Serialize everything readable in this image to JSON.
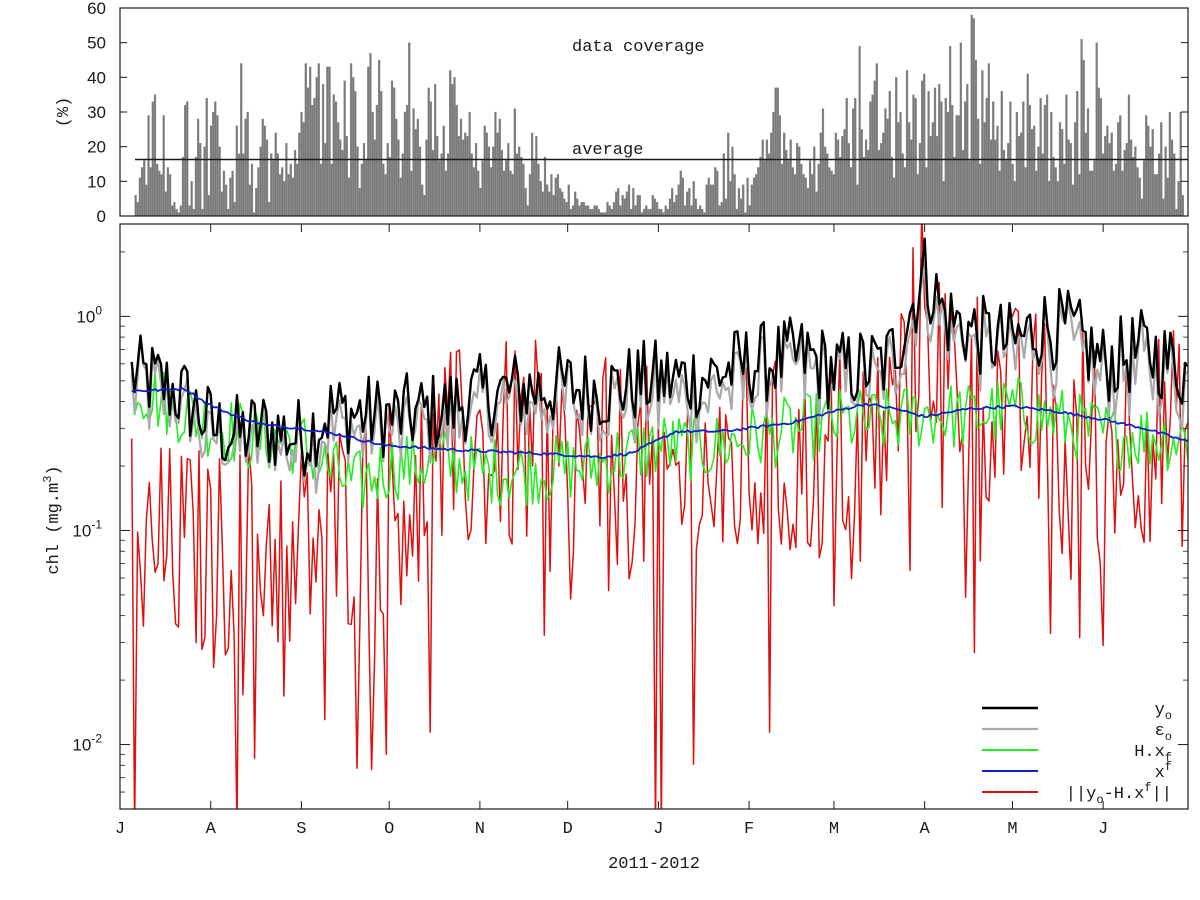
{
  "chart_data": [
    {
      "type": "bar",
      "ylabel": "(%)",
      "ylim": [
        0,
        60
      ],
      "yticks": [
        "0",
        "10",
        "20",
        "30",
        "40",
        "50",
        "60"
      ],
      "annotation": "data coverage",
      "average_label": "average",
      "average_value": 16.3,
      "grid": false,
      "day_step": 1,
      "values": [
        6,
        4,
        11,
        14,
        16,
        9,
        29,
        14,
        33,
        35,
        15,
        13,
        12,
        29,
        7,
        14,
        12,
        3,
        4,
        2,
        1,
        3,
        17,
        32,
        33,
        3,
        10,
        2,
        17,
        28,
        21,
        2,
        20,
        34,
        6,
        26,
        30,
        33,
        29,
        20,
        7,
        13,
        9,
        2,
        11,
        13,
        4,
        26,
        18,
        44,
        18,
        28,
        30,
        9,
        15,
        1,
        8,
        14,
        20,
        28,
        26,
        22,
        4,
        18,
        16,
        24,
        18,
        12,
        14,
        10,
        21,
        12,
        15,
        11,
        19,
        15,
        24,
        30,
        27,
        44,
        37,
        43,
        32,
        34,
        40,
        44,
        15,
        38,
        21,
        43,
        43,
        15,
        35,
        33,
        27,
        22,
        19,
        39,
        23,
        11,
        44,
        40,
        36,
        20,
        8,
        15,
        21,
        16,
        43,
        47,
        30,
        22,
        32,
        45,
        36,
        15,
        12,
        21,
        17,
        39,
        37,
        28,
        22,
        11,
        18,
        30,
        32,
        50,
        13,
        31,
        25,
        28,
        20,
        9,
        6,
        22,
        37,
        33,
        19,
        38,
        23,
        16,
        18,
        26,
        13,
        18,
        42,
        38,
        40,
        32,
        23,
        28,
        22,
        24,
        23,
        30,
        18,
        14,
        21,
        13,
        8,
        16,
        26,
        24,
        20,
        14,
        20,
        30,
        24,
        28,
        19,
        13,
        16,
        21,
        13,
        12,
        31,
        18,
        20,
        17,
        15,
        8,
        3,
        12,
        24,
        16,
        23,
        15,
        10,
        7,
        17,
        9,
        7,
        12,
        6,
        11,
        12,
        8,
        7,
        5,
        4,
        9,
        2,
        3,
        7,
        5,
        3,
        4,
        4,
        3,
        3,
        2,
        2,
        3,
        3,
        2,
        1,
        1,
        1,
        4,
        3,
        2,
        4,
        7,
        8,
        3,
        6,
        5,
        7,
        9,
        2,
        8,
        3,
        6,
        6,
        1,
        2,
        3,
        2,
        2,
        6,
        5,
        4,
        2,
        2,
        1,
        3,
        2,
        5,
        8,
        4,
        6,
        9,
        13,
        11,
        3,
        7,
        8,
        3,
        10,
        5,
        2,
        3,
        2,
        1,
        9,
        11,
        9,
        9,
        14,
        13,
        3,
        4,
        18,
        5,
        24,
        10,
        20,
        12,
        2,
        8,
        5,
        9,
        1,
        11,
        3,
        9,
        11,
        12,
        14,
        17,
        22,
        16,
        22,
        18,
        24,
        30,
        37,
        37,
        29,
        15,
        24,
        19,
        16,
        22,
        14,
        12,
        21,
        20,
        15,
        12,
        11,
        8,
        16,
        12,
        20,
        7,
        15,
        24,
        31,
        20,
        18,
        14,
        13,
        12,
        24,
        22,
        17,
        23,
        25,
        34,
        21,
        14,
        31,
        34,
        9,
        49,
        25,
        17,
        22,
        19,
        33,
        35,
        39,
        44,
        19,
        21,
        24,
        31,
        28,
        36,
        17,
        11,
        40,
        27,
        30,
        18,
        14,
        42,
        27,
        22,
        35,
        34,
        12,
        21,
        39,
        41,
        14,
        36,
        23,
        27,
        37,
        23,
        38,
        33,
        10,
        34,
        30,
        49,
        32,
        17,
        29,
        29,
        50,
        19,
        33,
        38,
        16,
        58,
        57,
        45,
        28,
        15,
        42,
        27,
        34,
        44,
        22,
        33,
        22,
        26,
        13,
        36,
        19,
        16,
        21,
        33,
        15,
        10,
        30,
        23,
        24,
        33,
        14,
        41,
        32,
        25,
        26,
        13,
        20,
        34,
        18,
        32,
        35,
        10,
        30,
        17,
        14,
        10,
        27,
        25,
        15,
        35,
        22,
        21,
        9,
        27,
        36,
        12,
        51,
        45,
        24,
        31,
        13,
        13,
        16,
        50,
        37,
        34,
        18,
        23,
        26,
        21,
        24,
        13,
        15,
        27,
        29,
        13,
        19,
        21,
        35,
        22,
        17,
        20,
        14,
        11,
        5,
        16,
        29,
        26,
        20,
        25,
        12,
        12,
        18,
        27,
        5,
        20,
        11,
        30,
        22,
        18,
        2,
        10,
        30,
        6
      ]
    },
    {
      "type": "line",
      "xlabel": "2011-2012",
      "ylabel": "chl (mg.m^3)",
      "yscale": "log",
      "ylim": [
        0.005,
        2.7
      ],
      "months": [
        "J",
        "A",
        "S",
        "O",
        "N",
        "D",
        "J",
        "F",
        "M",
        "A",
        "M",
        "J"
      ],
      "month_start_days": [
        0,
        31,
        62,
        92,
        123,
        153,
        184,
        215,
        244,
        275,
        305,
        336
      ],
      "xlim_days": [
        0,
        365
      ],
      "legend_position": "bottom-right",
      "series": [
        {
          "name": "y_o",
          "color": "#000000",
          "width": 2.4,
          "kind": "obs",
          "scale": 1.0
        },
        {
          "name": "ε_o",
          "color": "#aaaaaa",
          "width": 2.2,
          "kind": "obs",
          "scale": 0.86
        },
        {
          "name": "H.x_f",
          "color": "#22ee22",
          "width": 1.6,
          "kind": "model"
        },
        {
          "name": "x^f",
          "color": "#1020c8",
          "width": 1.8,
          "kind": "smooth"
        },
        {
          "name": "||y_o-H.x^f||",
          "color": "#e01010",
          "width": 1.5,
          "kind": "residual"
        }
      ],
      "obs_anchors": [
        [
          0,
          0.55
        ],
        [
          12,
          0.5
        ],
        [
          22,
          0.42
        ],
        [
          32,
          0.3
        ],
        [
          40,
          0.28
        ],
        [
          50,
          0.3
        ],
        [
          62,
          0.27
        ],
        [
          72,
          0.36
        ],
        [
          92,
          0.34
        ],
        [
          110,
          0.36
        ],
        [
          120,
          0.42
        ],
        [
          135,
          0.45
        ],
        [
          150,
          0.47
        ],
        [
          165,
          0.45
        ],
        [
          180,
          0.5
        ],
        [
          200,
          0.52
        ],
        [
          215,
          0.6
        ],
        [
          235,
          0.65
        ],
        [
          244,
          0.55
        ],
        [
          262,
          0.6
        ],
        [
          268,
          0.9
        ],
        [
          275,
          1.6
        ],
        [
          282,
          1.0
        ],
        [
          295,
          0.8
        ],
        [
          305,
          0.75
        ],
        [
          315,
          0.9
        ],
        [
          325,
          0.85
        ],
        [
          336,
          0.6
        ],
        [
          350,
          0.7
        ],
        [
          365,
          0.55
        ]
      ],
      "model_anchors": [
        [
          0,
          0.52
        ],
        [
          15,
          0.4
        ],
        [
          30,
          0.32
        ],
        [
          45,
          0.27
        ],
        [
          62,
          0.26
        ],
        [
          70,
          0.2
        ],
        [
          80,
          0.16
        ],
        [
          92,
          0.2
        ],
        [
          110,
          0.21
        ],
        [
          123,
          0.19
        ],
        [
          140,
          0.19
        ],
        [
          160,
          0.2
        ],
        [
          184,
          0.25
        ],
        [
          200,
          0.24
        ],
        [
          215,
          0.27
        ],
        [
          244,
          0.32
        ],
        [
          262,
          0.32
        ],
        [
          275,
          0.35
        ],
        [
          290,
          0.34
        ],
        [
          305,
          0.37
        ],
        [
          320,
          0.33
        ],
        [
          336,
          0.28
        ],
        [
          365,
          0.27
        ]
      ],
      "xf_anchors": [
        [
          0,
          0.45
        ],
        [
          10,
          0.45
        ],
        [
          22,
          0.46
        ],
        [
          30,
          0.39
        ],
        [
          40,
          0.34
        ],
        [
          50,
          0.31
        ],
        [
          62,
          0.3
        ],
        [
          75,
          0.28
        ],
        [
          90,
          0.25
        ],
        [
          110,
          0.24
        ],
        [
          123,
          0.235
        ],
        [
          140,
          0.23
        ],
        [
          153,
          0.225
        ],
        [
          165,
          0.22
        ],
        [
          175,
          0.23
        ],
        [
          190,
          0.29
        ],
        [
          205,
          0.29
        ],
        [
          215,
          0.3
        ],
        [
          230,
          0.32
        ],
        [
          244,
          0.36
        ],
        [
          255,
          0.39
        ],
        [
          265,
          0.37
        ],
        [
          275,
          0.34
        ],
        [
          290,
          0.37
        ],
        [
          305,
          0.38
        ],
        [
          320,
          0.36
        ],
        [
          336,
          0.33
        ],
        [
          350,
          0.3
        ],
        [
          365,
          0.26
        ]
      ],
      "residual_anchors": [
        [
          0,
          0.22
        ],
        [
          10,
          0.09
        ],
        [
          25,
          0.09
        ],
        [
          32,
          0.08
        ],
        [
          45,
          0.1
        ],
        [
          60,
          0.09
        ],
        [
          75,
          0.12
        ],
        [
          90,
          0.14
        ],
        [
          100,
          0.18
        ],
        [
          115,
          0.25
        ],
        [
          123,
          0.26
        ],
        [
          140,
          0.27
        ],
        [
          155,
          0.22
        ],
        [
          170,
          0.22
        ],
        [
          184,
          0.2
        ],
        [
          200,
          0.2
        ],
        [
          215,
          0.22
        ],
        [
          230,
          0.22
        ],
        [
          244,
          0.27
        ],
        [
          262,
          0.3
        ],
        [
          275,
          1.3
        ],
        [
          282,
          0.6
        ],
        [
          295,
          0.5
        ],
        [
          305,
          0.4
        ],
        [
          320,
          0.35
        ],
        [
          336,
          0.3
        ],
        [
          350,
          0.32
        ],
        [
          365,
          0.3
        ]
      ]
    }
  ]
}
